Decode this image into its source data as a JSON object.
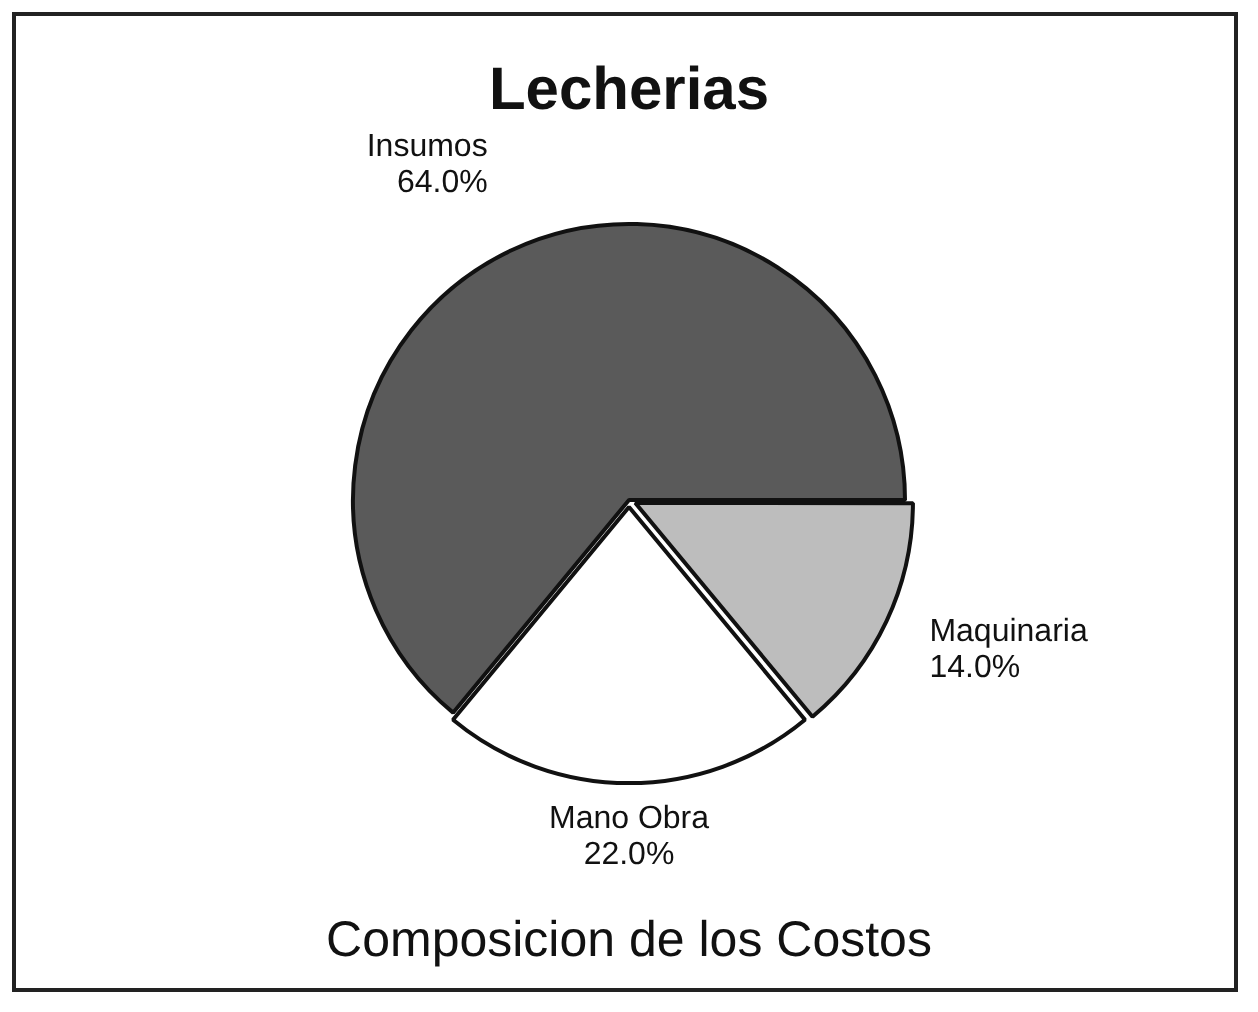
{
  "chart_data": {
    "type": "pie",
    "title": "Lecherias",
    "categories": [
      "Maquinaria",
      "Mano Obra",
      "Insumos"
    ],
    "values": [
      14,
      22,
      64
    ],
    "colors": [
      "#bdbdbd",
      "#ffffff",
      "#5a5a5a"
    ],
    "value_labels": [
      "14.0%",
      "22.0%",
      "64.0%"
    ],
    "legend": false,
    "annotations": [
      "Composicion de los Costos"
    ]
  }
}
